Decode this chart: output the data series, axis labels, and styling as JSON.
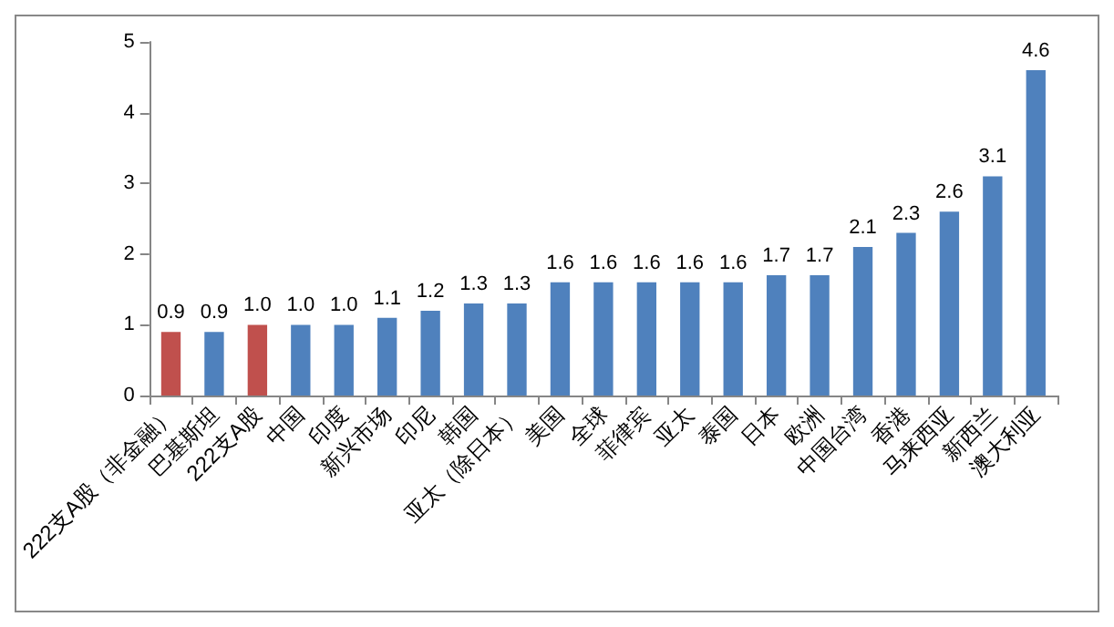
{
  "chart_data": {
    "type": "bar",
    "categories": [
      "222支A股（非金融）",
      "巴基斯坦",
      "222支A股",
      "中国",
      "印度",
      "新兴市场",
      "印尼",
      "韩国",
      "亚太（除日本）",
      "美国",
      "全球",
      "菲律宾",
      "亚太",
      "泰国",
      "日本",
      "欧洲",
      "中国台湾",
      "香港",
      "马来西亚",
      "新西兰",
      "澳大利亚"
    ],
    "values": [
      0.9,
      0.9,
      1.0,
      1.0,
      1.0,
      1.1,
      1.2,
      1.3,
      1.3,
      1.6,
      1.6,
      1.6,
      1.6,
      1.6,
      1.7,
      1.7,
      2.1,
      2.3,
      2.6,
      3.1,
      4.6
    ],
    "colors": [
      "#c0504d",
      "#4f81bd",
      "#c0504d",
      "#4f81bd",
      "#4f81bd",
      "#4f81bd",
      "#4f81bd",
      "#4f81bd",
      "#4f81bd",
      "#4f81bd",
      "#4f81bd",
      "#4f81bd",
      "#4f81bd",
      "#4f81bd",
      "#4f81bd",
      "#4f81bd",
      "#4f81bd",
      "#4f81bd",
      "#4f81bd",
      "#4f81bd",
      "#4f81bd"
    ],
    "value_labels": [
      "0.9",
      "0.9",
      "1.0",
      "1.0",
      "1.0",
      "1.1",
      "1.2",
      "1.3",
      "1.3",
      "1.6",
      "1.6",
      "1.6",
      "1.6",
      "1.6",
      "1.7",
      "1.7",
      "2.1",
      "2.3",
      "2.6",
      "3.1",
      "4.6"
    ],
    "ylim": [
      0,
      5
    ],
    "yticks": [
      0,
      1,
      2,
      3,
      4,
      5
    ]
  }
}
